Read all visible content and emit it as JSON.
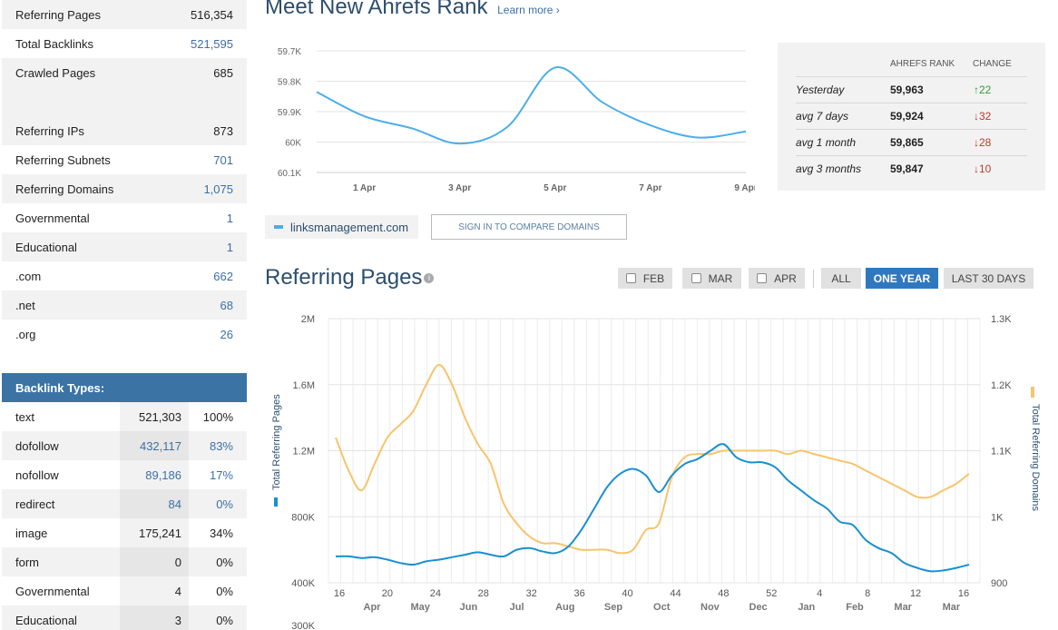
{
  "stats": [
    {
      "label": "Referring Pages",
      "value": "516,354",
      "link": false
    },
    {
      "label": "Total Backlinks",
      "value": "521,595",
      "link": true
    },
    {
      "label": "Crawled Pages",
      "value": "685",
      "link": false
    },
    {
      "label": "",
      "value": "",
      "link": false
    },
    {
      "label": "Referring IPs",
      "value": "873",
      "link": false
    },
    {
      "label": "Referring Subnets",
      "value": "701",
      "link": true
    },
    {
      "label": "Referring Domains",
      "value": "1,075",
      "link": true
    },
    {
      "label": "Governmental",
      "value": "1",
      "link": true
    },
    {
      "label": "Educational",
      "value": "1",
      "link": true
    },
    {
      "label": ".com",
      "value": "662",
      "link": true
    },
    {
      "label": ".net",
      "value": "68",
      "link": true
    },
    {
      "label": ".org",
      "value": "26",
      "link": true
    }
  ],
  "backlink_types": {
    "title": "Backlink Types:",
    "rows": [
      {
        "label": "text",
        "count": "521,303",
        "pct": "100%",
        "link": false
      },
      {
        "label": "dofollow",
        "count": "432,117",
        "pct": "83%",
        "link": true
      },
      {
        "label": "nofollow",
        "count": "89,186",
        "pct": "17%",
        "link": true
      },
      {
        "label": "redirect",
        "count": "84",
        "pct": "0%",
        "link": true
      },
      {
        "label": "image",
        "count": "175,241",
        "pct": "34%",
        "link": false
      },
      {
        "label": "form",
        "count": "0",
        "pct": "0%",
        "link": false
      },
      {
        "label": "Governmental",
        "count": "4",
        "pct": "0%",
        "link": false
      },
      {
        "label": "Educational",
        "count": "3",
        "pct": "0%",
        "link": false
      }
    ]
  },
  "rank": {
    "title": "Meet New Ahrefs Rank",
    "learn_more": "Learn more ›",
    "table": {
      "col_rank": "AHREFS RANK",
      "col_change": "CHANGE",
      "rows": [
        {
          "period": "Yesterday",
          "rank": "59,963",
          "arrow": "↑",
          "change": "22",
          "dir": "up"
        },
        {
          "period": "avg 7 days",
          "rank": "59,924",
          "arrow": "↓",
          "change": "32",
          "dir": "down"
        },
        {
          "period": "avg 1 month",
          "rank": "59,865",
          "arrow": "↓",
          "change": "28",
          "dir": "down"
        },
        {
          "period": "avg 3 months",
          "rank": "59,847",
          "arrow": "↓",
          "change": "10",
          "dir": "down"
        }
      ]
    },
    "legend_domain": "linksmanagement.com",
    "compare_button": "SIGN IN TO COMPARE DOMAINS"
  },
  "referring_pages": {
    "title": "Referring Pages",
    "buttons": {
      "feb": "FEB",
      "mar": "MAR",
      "apr": "APR",
      "all": "ALL",
      "one_year": "ONE YEAR",
      "last30": "LAST 30 DAYS"
    }
  },
  "colors": {
    "accent": "#2f78c0",
    "blue_line": "#1a8fd0",
    "orange_line": "#f7c46c",
    "rank_line": "#4aaee8"
  },
  "chart_data": [
    {
      "type": "line",
      "title": "",
      "x": [
        "31 Mar",
        "1 Apr",
        "2 Apr",
        "3 Apr",
        "4 Apr",
        "5 Apr",
        "6 Apr",
        "7 Apr",
        "8 Apr",
        "9 Apr"
      ],
      "x_tick_labels": [
        "1 Apr",
        "3 Apr",
        "5 Apr",
        "7 Apr",
        "9 Apr"
      ],
      "y_tick_labels": [
        "59.7K",
        "59.8K",
        "59.9K",
        "60K",
        "60.1K"
      ],
      "ylim": [
        60100,
        59700
      ],
      "y_reversed": true,
      "series": [
        {
          "name": "linksmanagement.com",
          "values": [
            59835,
            59915,
            59955,
            60005,
            59950,
            59755,
            59870,
            59945,
            59985,
            59965
          ]
        }
      ]
    },
    {
      "type": "line",
      "title": "",
      "ylabel": "Total Referring Pages",
      "y2label": "Total Referring Domains",
      "left_ticks": [
        "300K",
        "400K",
        "800K",
        "1.2M",
        "1.6M",
        "2M"
      ],
      "right_ticks": [
        "900",
        "1K",
        "1.1K",
        "1.2K",
        "1.3K"
      ],
      "ylim": [
        400000,
        2000000
      ],
      "y2lim": [
        900,
        1300
      ],
      "x_week_labels": [
        "16",
        "20",
        "24",
        "28",
        "32",
        "36",
        "40",
        "44",
        "48",
        "52",
        "4",
        "8",
        "12",
        "16"
      ],
      "x_month_labels": [
        "Apr",
        "May",
        "Jun",
        "Jul",
        "Aug",
        "Sep",
        "Oct",
        "Nov",
        "Dec",
        "Jan",
        "Feb",
        "Mar",
        "Mar"
      ],
      "series": [
        {
          "name": "Total Referring Pages",
          "values": [
            560000,
            560000,
            550000,
            555000,
            540000,
            520000,
            510000,
            530000,
            540000,
            555000,
            570000,
            585000,
            570000,
            560000,
            600000,
            610000,
            590000,
            580000,
            620000,
            720000,
            850000,
            980000,
            1060000,
            1090000,
            1050000,
            950000,
            1050000,
            1120000,
            1150000,
            1200000,
            1240000,
            1160000,
            1130000,
            1130000,
            1100000,
            1020000,
            960000,
            900000,
            850000,
            770000,
            750000,
            660000,
            610000,
            580000,
            520000,
            490000,
            470000,
            475000,
            490000,
            510000
          ]
        },
        {
          "name": "Total Referring Domains",
          "values": [
            1120,
            1070,
            1040,
            1080,
            1120,
            1140,
            1160,
            1200,
            1230,
            1200,
            1150,
            1110,
            1080,
            1020,
            990,
            970,
            960,
            960,
            955,
            950,
            950,
            950,
            945,
            950,
            980,
            990,
            1060,
            1090,
            1095,
            1095,
            1100,
            1100,
            1100,
            1100,
            1100,
            1095,
            1100,
            1095,
            1090,
            1085,
            1080,
            1070,
            1060,
            1050,
            1040,
            1030,
            1030,
            1040,
            1050,
            1065
          ]
        }
      ]
    }
  ]
}
